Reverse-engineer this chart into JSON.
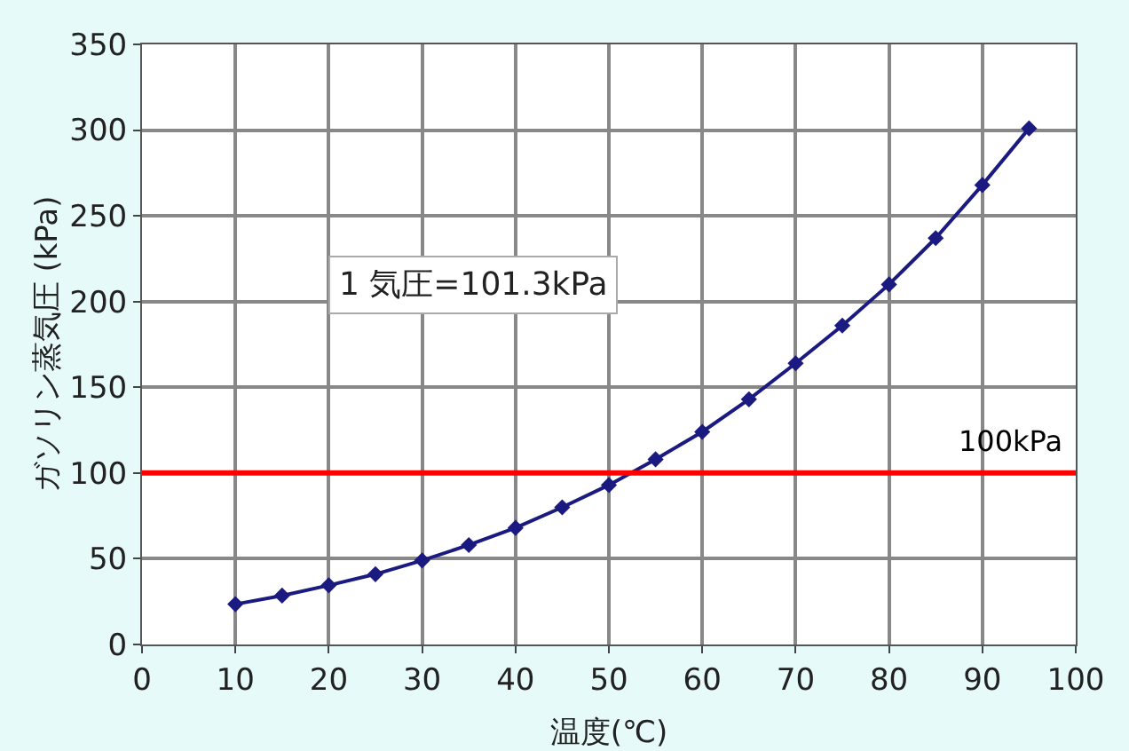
{
  "chart_data": {
    "type": "line",
    "xlabel": "温度(℃)",
    "ylabel": "ガソリン蒸気圧 (kPa)",
    "x": [
      10,
      15,
      20,
      25,
      30,
      35,
      40,
      45,
      50,
      55,
      60,
      65,
      70,
      75,
      80,
      85,
      90,
      95
    ],
    "series": [
      {
        "color": "#1a1a80",
        "values": [
          23.5,
          28.5,
          34.5,
          41,
          49,
          58,
          68,
          80,
          93,
          108,
          124,
          143,
          164,
          186,
          210,
          237,
          268,
          301
        ]
      }
    ],
    "xlim": [
      0,
      100
    ],
    "xticks": [
      0,
      10,
      20,
      30,
      40,
      50,
      60,
      70,
      80,
      90,
      100
    ],
    "ylim": [
      0,
      350
    ],
    "yticks": [
      0,
      50,
      100,
      150,
      200,
      250,
      300,
      350
    ],
    "grid": true,
    "marker": "diamond",
    "line_style": "solid",
    "ref_lines": [
      {
        "axis": "y",
        "value": 100,
        "label": "100kPa",
        "color": "#ff0000"
      }
    ],
    "annotations": [
      "1 気圧=101.3kPa"
    ]
  }
}
